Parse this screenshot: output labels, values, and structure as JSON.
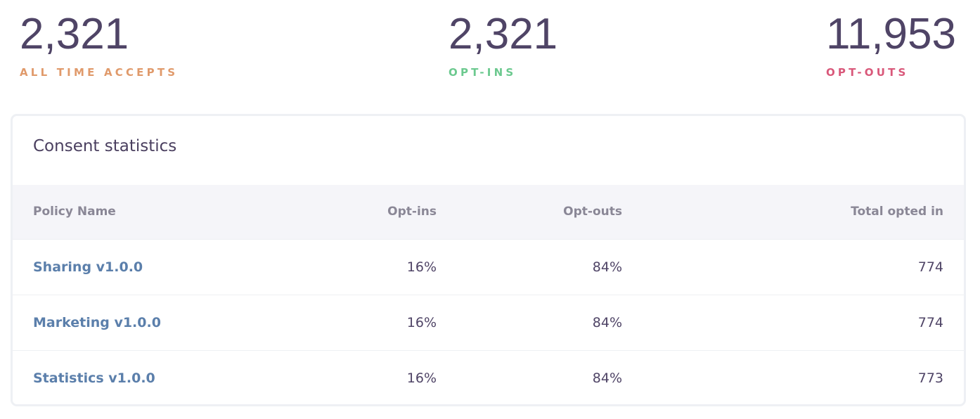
{
  "stats": [
    {
      "value": "2,321",
      "label": "ALL TIME ACCEPTS"
    },
    {
      "value": "2,321",
      "label": "OPT-INS"
    },
    {
      "value": "11,953",
      "label": "OPT-OUTS"
    }
  ],
  "table": {
    "title": "Consent statistics",
    "columns": [
      "Policy Name",
      "Opt-ins",
      "Opt-outs",
      "Total opted in"
    ],
    "rows": [
      [
        "Sharing v1.0.0",
        "16%",
        "84%",
        "774"
      ],
      [
        "Marketing v1.0.0",
        "16%",
        "84%",
        "774"
      ],
      [
        "Statistics v1.0.0",
        "16%",
        "84%",
        "773"
      ]
    ]
  }
}
